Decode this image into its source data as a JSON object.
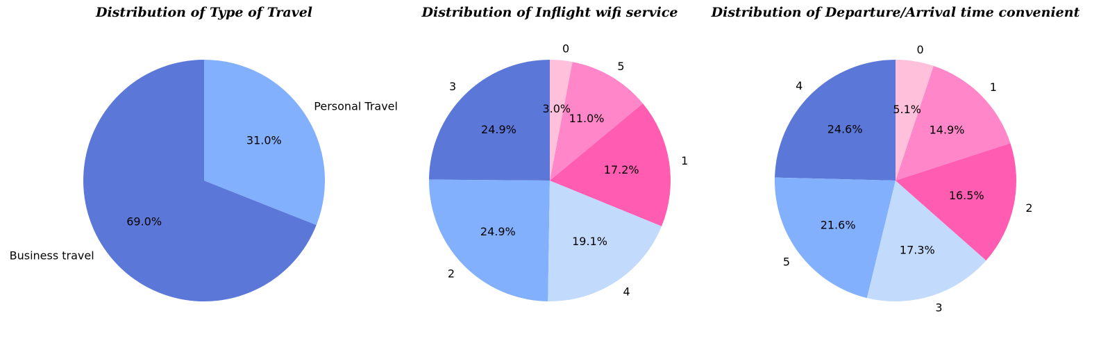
{
  "chart_data": [
    {
      "type": "pie",
      "title": "Distribution of Type of Travel",
      "categories": [
        "Business travel",
        "Personal Travel"
      ],
      "values": [
        69.0,
        31.0
      ],
      "value_labels": [
        "69.0%",
        "31.0%"
      ],
      "colors": [
        "#5b78d8",
        "#82b0fc"
      ],
      "start_angle": 90,
      "direction": "counterclockwise"
    },
    {
      "type": "pie",
      "title": "Distribution of Inflight wifi service",
      "categories": [
        "3",
        "2",
        "4",
        "1",
        "5",
        "0"
      ],
      "values": [
        24.9,
        24.9,
        19.1,
        17.2,
        11.0,
        3.0
      ],
      "value_labels": [
        "24.9%",
        "24.9%",
        "19.1%",
        "17.2%",
        "11.0%",
        "3.0%"
      ],
      "colors": [
        "#5b78d8",
        "#82b0fc",
        "#c2dafc",
        "#ff5cb2",
        "#ff86c8",
        "#ffc0db"
      ],
      "start_angle": 90,
      "direction": "counterclockwise"
    },
    {
      "type": "pie",
      "title": "Distribution of Departure/Arrival time convenient",
      "categories": [
        "4",
        "5",
        "3",
        "2",
        "1",
        "0"
      ],
      "values": [
        24.6,
        21.6,
        17.3,
        16.5,
        14.9,
        5.1
      ],
      "value_labels": [
        "24.6%",
        "21.6%",
        "17.3%",
        "16.5%",
        "14.9%",
        "5.1%"
      ],
      "colors": [
        "#5b78d8",
        "#82b0fc",
        "#c2dafc",
        "#ff5cb2",
        "#ff86c8",
        "#ffc0db"
      ],
      "start_angle": 90,
      "direction": "counterclockwise"
    }
  ]
}
